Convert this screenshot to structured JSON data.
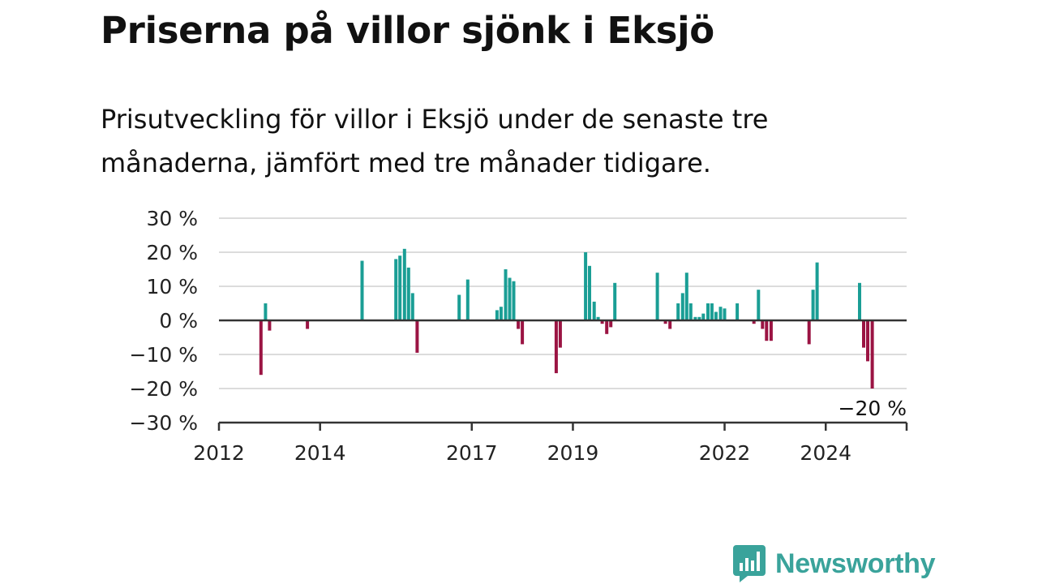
{
  "title": "Priserna på villor sjönk i Eksjö",
  "subtitle": "Prisutveckling för villor i Eksjö under de senaste tre månaderna, jämfört med tre månader tidigare.",
  "brand": {
    "name": "Newsworthy"
  },
  "colors": {
    "positive": "#1a9e95",
    "negative": "#9b1443",
    "grid": "#dcdcdc",
    "axis": "#333333",
    "brand": "#3aa39b"
  },
  "chart_data": {
    "type": "bar",
    "title": "Priserna på villor sjönk i Eksjö",
    "subtitle": "Prisutveckling för villor i Eksjö under de senaste tre månaderna, jämfört med tre månader tidigare.",
    "xlabel": "",
    "ylabel": "",
    "ylim": [
      -30,
      30
    ],
    "xlim": [
      2012.0,
      2025.6
    ],
    "y_ticks": [
      30,
      20,
      10,
      0,
      -10,
      -20,
      -30
    ],
    "y_tick_labels": [
      "30 %",
      "20 %",
      "10 %",
      "0 %",
      "−10 %",
      "−20 %",
      "−30 %"
    ],
    "x_ticks": [
      2012,
      2014,
      2017,
      2019,
      2022,
      2024
    ],
    "x_tick_labels": [
      "2012",
      "2014",
      "2017",
      "2019",
      "2022",
      "2024"
    ],
    "grid": true,
    "legend": "none",
    "annotation": {
      "text": "−20 %",
      "x": 2024.92,
      "y": -20
    },
    "x": [
      2012.83,
      2012.92,
      2013.0,
      2013.75,
      2014.83,
      2015.5,
      2015.58,
      2015.67,
      2015.75,
      2015.83,
      2015.92,
      2016.75,
      2016.92,
      2017.5,
      2017.58,
      2017.67,
      2017.75,
      2017.83,
      2017.92,
      2018.0,
      2018.67,
      2018.75,
      2019.25,
      2019.33,
      2019.42,
      2019.5,
      2019.58,
      2019.67,
      2019.75,
      2019.83,
      2020.67,
      2020.83,
      2020.92,
      2021.08,
      2021.17,
      2021.25,
      2021.33,
      2021.42,
      2021.5,
      2021.58,
      2021.67,
      2021.75,
      2021.83,
      2021.92,
      2022.0,
      2022.25,
      2022.58,
      2022.67,
      2022.75,
      2022.83,
      2022.92,
      2023.67,
      2023.75,
      2023.83,
      2024.67,
      2024.75,
      2024.83,
      2024.92
    ],
    "values": [
      -16,
      5,
      -3,
      -2.5,
      17.5,
      18,
      19,
      21,
      15.5,
      8,
      -9.5,
      7.5,
      12,
      3,
      4,
      15,
      12.5,
      11.5,
      -2.5,
      -7,
      -15.5,
      -8,
      20,
      16,
      5.5,
      1,
      -1,
      -4,
      -2,
      11,
      14,
      -1,
      -2.5,
      5,
      8,
      14,
      5,
      1,
      1,
      2,
      5,
      5,
      2.5,
      4,
      3.5,
      5,
      -1,
      9,
      -2.5,
      -6,
      -6,
      -7,
      9,
      17,
      11,
      -8,
      -12,
      -20
    ]
  }
}
